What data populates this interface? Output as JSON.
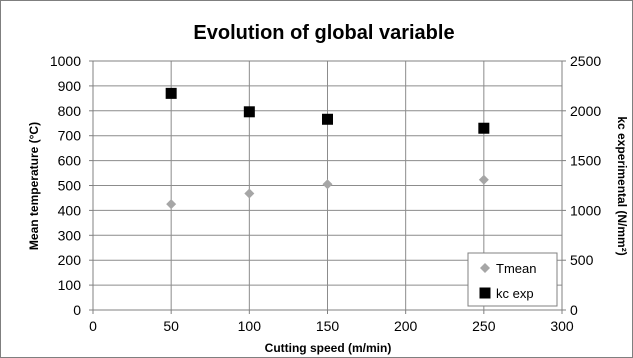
{
  "chart_data": {
    "type": "scatter",
    "title": "Evolution of global variable",
    "xlabel": "Cutting speed (m/min)",
    "ylabel": "Mean temperature (°C)",
    "y2label": "kc experimental (N/mm²)",
    "xlim": [
      0,
      300
    ],
    "ylim": [
      0,
      1000
    ],
    "y2lim": [
      0,
      2500
    ],
    "xticks": [
      0,
      50,
      100,
      150,
      200,
      250,
      300
    ],
    "yticks": [
      0,
      100,
      200,
      300,
      400,
      500,
      600,
      700,
      800,
      900,
      1000
    ],
    "y2ticks": [
      0,
      500,
      1000,
      1500,
      2000,
      2500
    ],
    "grid": true,
    "legend_position": "bottom-right",
    "series": [
      {
        "name": "Tmean",
        "axis": "left",
        "marker": "diamond",
        "color": "#a6a6a6",
        "x": [
          50,
          100,
          150,
          250
        ],
        "y": [
          425,
          468,
          505,
          523
        ]
      },
      {
        "name": "kc exp",
        "axis": "right",
        "marker": "square",
        "color": "#000000",
        "x": [
          50,
          100,
          150,
          250
        ],
        "y": [
          2175,
          1990,
          1915,
          1825
        ]
      }
    ]
  }
}
